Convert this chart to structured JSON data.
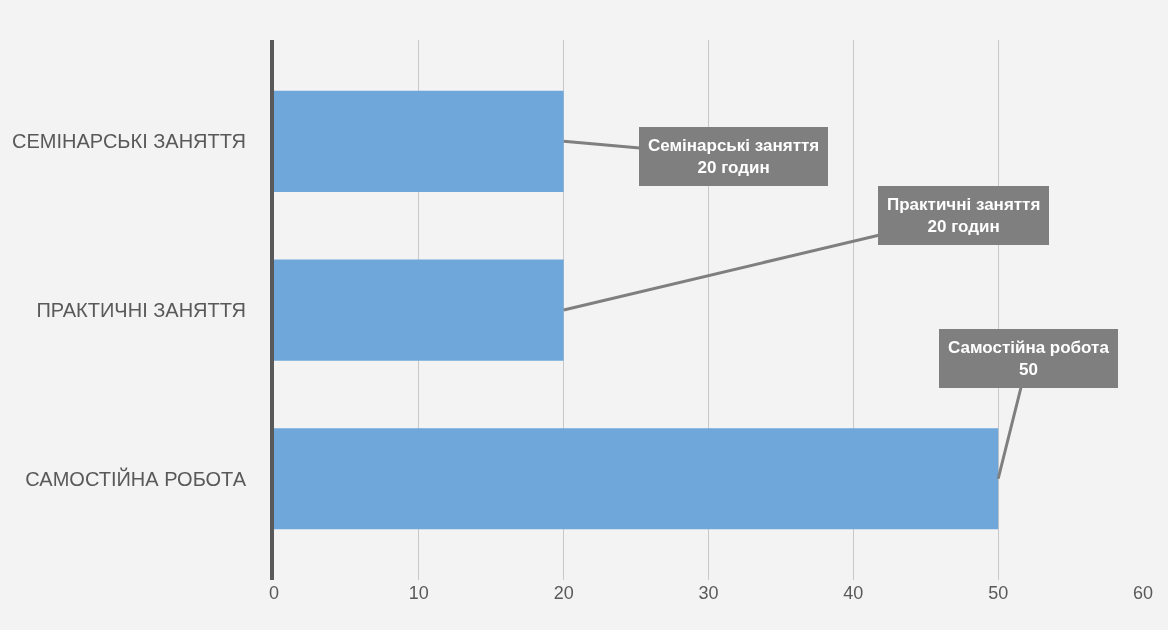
{
  "chart_data": {
    "type": "bar",
    "orientation": "horizontal",
    "categories": [
      "СЕМІНАРСЬКІ ЗАНЯТТЯ",
      "ПРАКТИЧНІ ЗАНЯТТЯ",
      "САМОСТІЙНА РОБОТА"
    ],
    "values": [
      20,
      20,
      50
    ],
    "color": "#70a7db",
    "value_labels": [
      "Семінарські заняття\n20 годин",
      "Практичні заняття\n20 годин",
      "Самостійна робота\n50"
    ],
    "xlim": [
      0,
      60
    ],
    "xticks": [
      0,
      10,
      20,
      30,
      40,
      50,
      60
    ],
    "grid": "x"
  }
}
